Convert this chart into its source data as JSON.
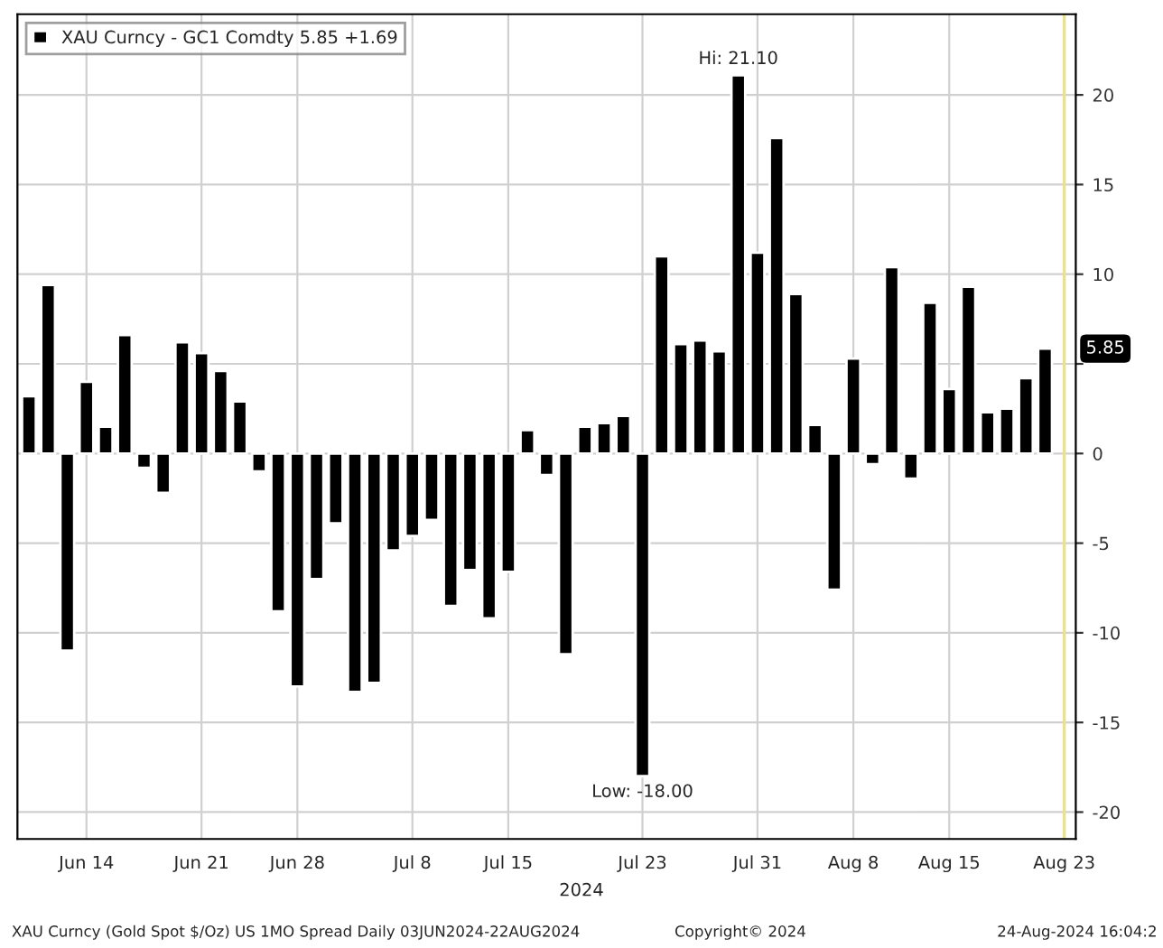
{
  "chart_data": {
    "type": "bar",
    "categories": [
      null,
      null,
      null,
      "Jun 14",
      null,
      null,
      null,
      null,
      null,
      "Jun 21",
      null,
      null,
      null,
      null,
      "Jun 28",
      null,
      null,
      null,
      null,
      null,
      "Jul 8",
      null,
      null,
      null,
      null,
      "Jul 15",
      null,
      null,
      null,
      null,
      null,
      null,
      "Jul 23",
      null,
      null,
      null,
      null,
      null,
      "Jul 31",
      null,
      null,
      null,
      null,
      "Aug 8",
      null,
      null,
      null,
      null,
      "Aug 15",
      null,
      null,
      null,
      null,
      null,
      "Aug 23"
    ],
    "series": [
      {
        "name": "XAU Curncy - GC1 Comdty 5.85 +1.69",
        "color": "#000000",
        "values": [
          3.2,
          9.4,
          -11.0,
          4.0,
          1.5,
          6.6,
          -0.8,
          -2.2,
          6.2,
          5.6,
          4.6,
          2.9,
          -1.0,
          -8.8,
          -13.0,
          -7.0,
          -3.9,
          -13.3,
          -12.8,
          -5.4,
          -4.6,
          -3.7,
          -8.5,
          -6.5,
          -9.2,
          -6.6,
          1.3,
          -1.2,
          -11.2,
          1.5,
          1.7,
          2.1,
          -18.0,
          11.0,
          6.1,
          6.3,
          5.7,
          21.1,
          11.2,
          17.6,
          8.9,
          1.6,
          -7.6,
          5.3,
          -0.6,
          10.4,
          -1.4,
          8.4,
          3.6,
          9.3,
          2.3,
          2.5,
          4.2,
          5.85,
          null
        ]
      }
    ],
    "ylim": [
      -21.5,
      24.5
    ],
    "yticks": [
      -20,
      -15,
      -10,
      -5,
      0,
      {
        "value": 5,
        "label": null
      },
      10,
      15,
      20
    ],
    "grid": true,
    "legend": "top left",
    "ref_lines": [
      {
        "axis": "x",
        "value": "Aug 23",
        "color": "#ece08a"
      }
    ],
    "annotations": [
      {
        "text": "Hi: 21.10",
        "y": 21.1
      },
      {
        "text": "Low: -18.00",
        "y": -18.0
      },
      "5.85",
      "2024",
      "XAU Curncy (Gold Spot $/Oz) US 1MO Spread Daily 03JUN2024-22AUG2024",
      "Copyright© 2024",
      "24-Aug-2024 16:04:2"
    ]
  }
}
